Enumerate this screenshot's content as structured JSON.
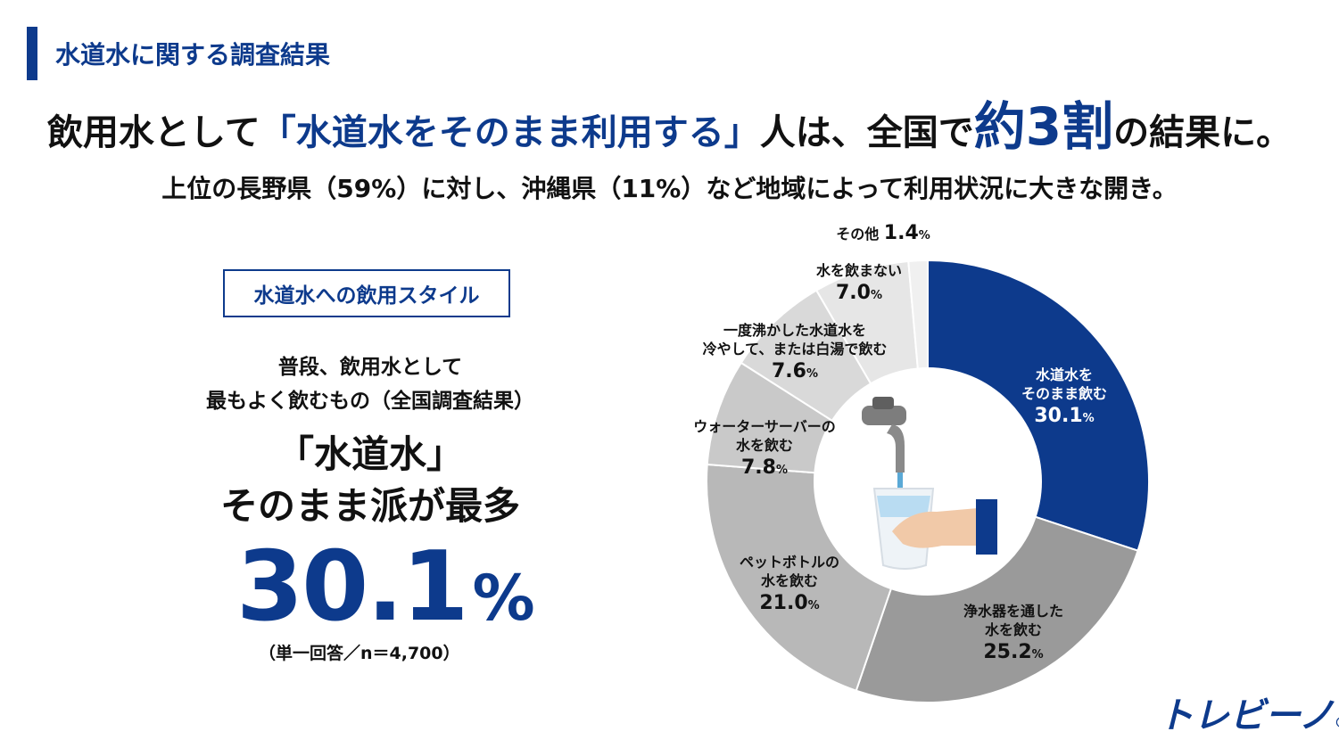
{
  "header": {
    "section_title": "水道水に関する調査結果"
  },
  "headline": {
    "part1": "飲用水として",
    "part2": "「水道水をそのまま利用する」",
    "part3": "人は、全国で",
    "highlight": "約3割",
    "part4": "の結果に。"
  },
  "subheadline": "上位の長野県（59%）に対し、沖縄県（11%）など地域によって利用状況に大きな開き。",
  "left_panel": {
    "box_label": "水道水への飲用スタイル",
    "desc_line1": "普段、飲用水として",
    "desc_line2": "最もよく飲むもの（全国調査結果）",
    "quote": "「水道水」",
    "claim": "そのまま派が最多",
    "big_value": "30.1",
    "big_unit": "%",
    "note": "（単一回答／n＝4,700）"
  },
  "colors": {
    "accent": "#0d3a8c",
    "seg2": "#9a9a9a",
    "seg3": "#b8b8b8",
    "seg4": "#c9c9c9",
    "seg5": "#d9d9d9",
    "seg6": "#e6e6e6",
    "seg7": "#f0f0f0"
  },
  "chart_data": {
    "type": "pie",
    "style": "donut",
    "start": "top, clockwise",
    "slices": [
      {
        "label_line1": "水道水を",
        "label_line2": "そのまま飲む",
        "value": 30.1,
        "value_text": "30.1",
        "unit": "%",
        "color": "#0d3a8c"
      },
      {
        "label_line1": "浄水器を通した",
        "label_line2": "水を飲む",
        "value": 25.2,
        "value_text": "25.2",
        "unit": "%",
        "color": "#9a9a9a"
      },
      {
        "label_line1": "ペットボトルの",
        "label_line2": "水を飲む",
        "value": 21.0,
        "value_text": "21.0",
        "unit": "%",
        "color": "#b8b8b8"
      },
      {
        "label_line1": "ウォーターサーバーの",
        "label_line2": "水を飲む",
        "value": 7.8,
        "value_text": "7.8",
        "unit": "%",
        "color": "#c9c9c9"
      },
      {
        "label_line1": "一度沸かした水道水を",
        "label_line2": "冷やして、または白湯で飲む",
        "value": 7.6,
        "value_text": "7.6",
        "unit": "%",
        "color": "#d9d9d9"
      },
      {
        "label_line1": "水を飲まない",
        "label_line2": "",
        "value": 7.0,
        "value_text": "7.0",
        "unit": "%",
        "color": "#e6e6e6"
      },
      {
        "label_line1": "その他",
        "label_line2": "",
        "value": 1.4,
        "value_text": "1.4",
        "unit": "%",
        "color": "#f0f0f0"
      }
    ]
  },
  "logo": {
    "text": "トレビーノ",
    "mark": "®"
  }
}
